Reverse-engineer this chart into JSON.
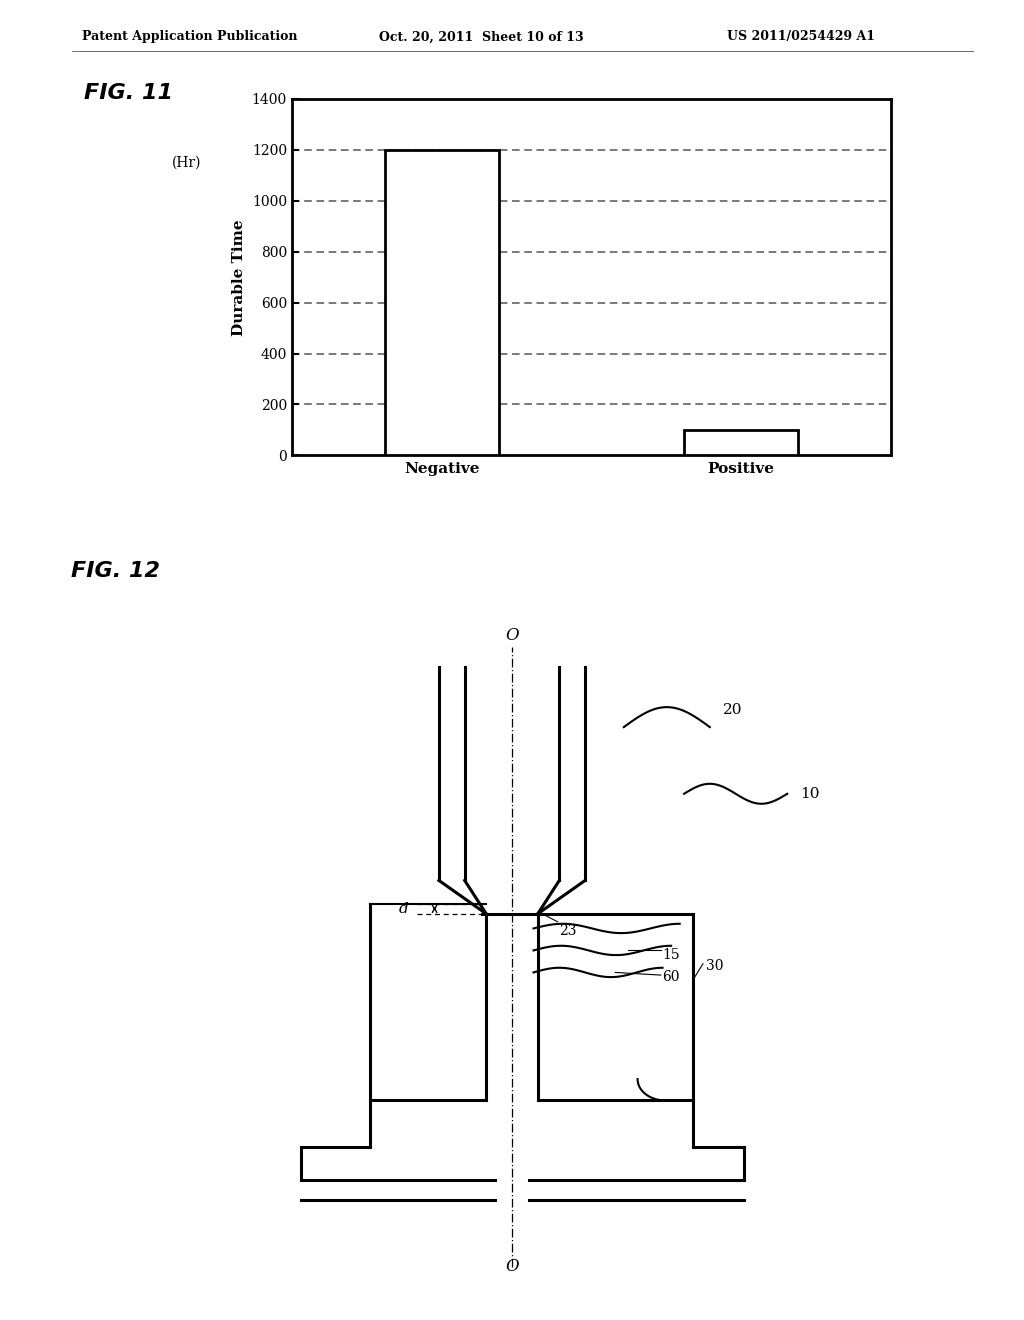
{
  "page_header_left": "Patent Application Publication",
  "page_header_mid": "Oct. 20, 2011  Sheet 10 of 13",
  "page_header_right": "US 2011/0254429 A1",
  "fig11_label": "FIG. 11",
  "fig12_label": "FIG. 12",
  "bar_categories": [
    "Negative",
    "Positive"
  ],
  "bar_values": [
    1200,
    100
  ],
  "y_axis_label": "Durable Time",
  "y_axis_unit": "(Hr)",
  "y_ticks": [
    0,
    200,
    400,
    600,
    800,
    1000,
    1200,
    1400
  ],
  "y_max": 1400,
  "bar_color": "#ffffff",
  "bar_edgecolor": "#000000",
  "grid_color": "#555555",
  "background": "#ffffff",
  "text_color": "#000000",
  "label_20": "20",
  "label_10": "10",
  "label_23": "23",
  "label_15": "15",
  "label_30": "30",
  "label_60": "60",
  "label_d": "d",
  "label_o": "O"
}
